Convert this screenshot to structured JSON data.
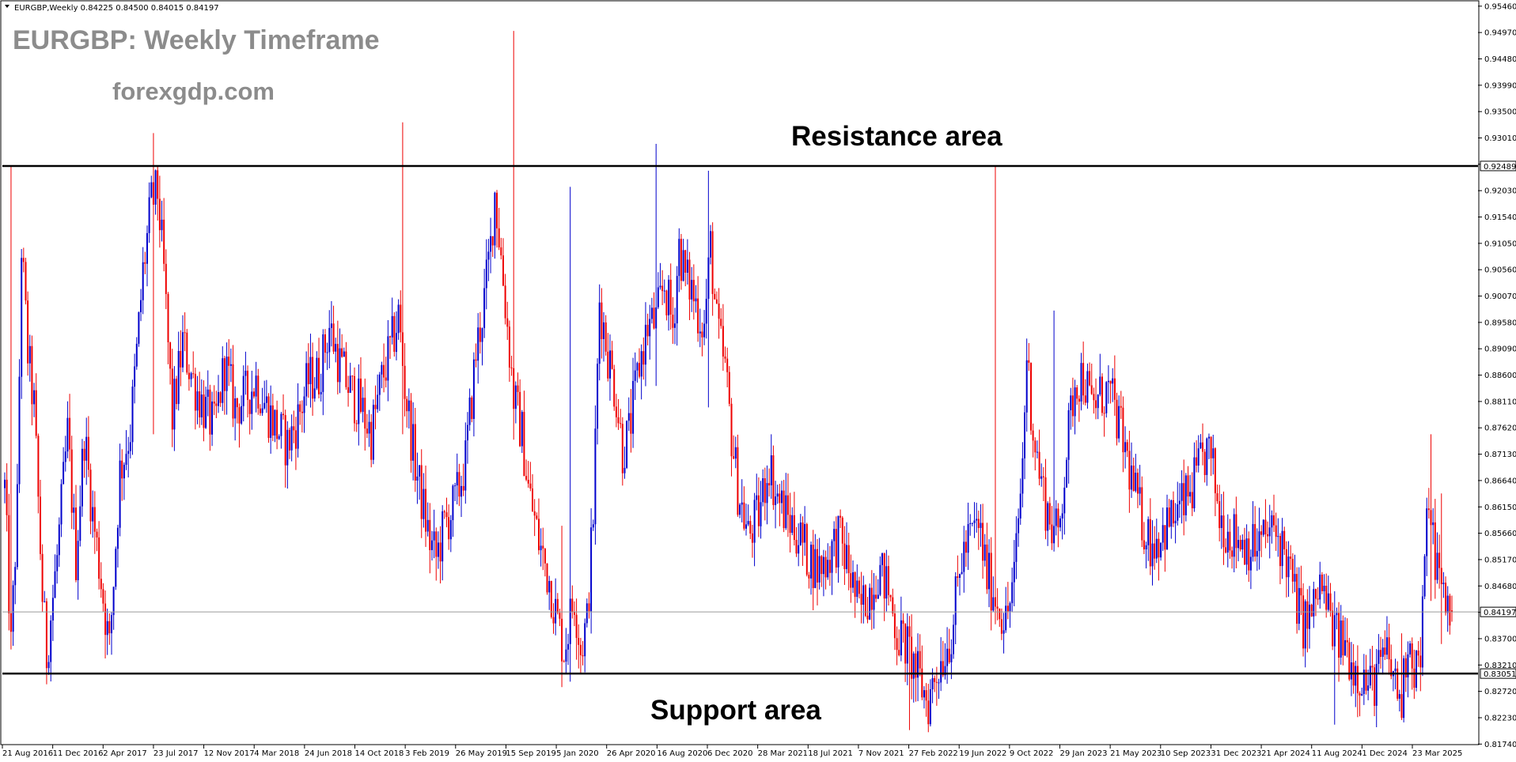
{
  "header": {
    "symbol_line": "EURGBP,Weekly  0.84225 0.84500 0.84015 0.84197"
  },
  "watermark": {
    "title": "EURGBP: Weekly Timeframe",
    "site": "forexgdp.com"
  },
  "annotations": {
    "resistance": "Resistance area",
    "support": "Support area"
  },
  "colors": {
    "bull": "#0000cc",
    "bear": "#ee0000",
    "level": "#000000",
    "current_line": "#9a9a9a",
    "grid": "#000000"
  },
  "chart_data": {
    "type": "candlestick",
    "symbol": "EURGBP",
    "timeframe": "Weekly",
    "last": {
      "open": 0.84225,
      "high": 0.845,
      "low": 0.84015,
      "close": 0.84197
    },
    "ylim": [
      0.8173,
      0.9556
    ],
    "y_ticks": [
      "0.95460",
      "0.94970",
      "0.94480",
      "0.93990",
      "0.93500",
      "0.93010",
      "0.92520",
      "0.92030",
      "0.91540",
      "0.91050",
      "0.90560",
      "0.90070",
      "0.89580",
      "0.89090",
      "0.88600",
      "0.88110",
      "0.87620",
      "0.87130",
      "0.86640",
      "0.86150",
      "0.85660",
      "0.85170",
      "0.84680",
      "0.84190",
      "0.83700",
      "0.83210",
      "0.82720",
      "0.82230",
      "0.81740"
    ],
    "x_ticks": [
      "21 Aug 2016",
      "11 Dec 2016",
      "2 Apr 2017",
      "23 Jul 2017",
      "12 Nov 2017",
      "4 Mar 2018",
      "24 Jun 2018",
      "14 Oct 2018",
      "3 Feb 2019",
      "26 May 2019",
      "15 Sep 2019",
      "5 Jan 2020",
      "26 Apr 2020",
      "16 Aug 2020",
      "6 Dec 2020",
      "28 Mar 2021",
      "18 Jul 2021",
      "7 Nov 2021",
      "27 Feb 2022",
      "19 Jun 2022",
      "9 Oct 2022",
      "29 Jan 2023",
      "21 May 2023",
      "10 Sep 2023",
      "31 Dec 2023",
      "21 Apr 2024",
      "11 Aug 2024",
      "1 Dec 2024",
      "23 Mar 2025"
    ],
    "levels": [
      {
        "name": "Resistance area",
        "value": 0.92489,
        "tag": "0.92489"
      },
      {
        "name": "Support area",
        "value": 0.83051,
        "tag": "0.83051"
      }
    ],
    "current_price": {
      "value": 0.84197,
      "tag": "0.84197"
    },
    "path_points": [
      [
        0,
        0.865
      ],
      [
        3,
        0.835
      ],
      [
        6,
        0.862
      ],
      [
        8,
        0.91
      ],
      [
        11,
        0.89
      ],
      [
        14,
        0.88
      ],
      [
        18,
        0.845
      ],
      [
        20,
        0.834
      ],
      [
        25,
        0.852
      ],
      [
        30,
        0.875
      ],
      [
        34,
        0.852
      ],
      [
        38,
        0.875
      ],
      [
        42,
        0.86
      ],
      [
        46,
        0.848
      ],
      [
        50,
        0.835
      ],
      [
        55,
        0.868
      ],
      [
        60,
        0.876
      ],
      [
        63,
        0.89
      ],
      [
        66,
        0.905
      ],
      [
        70,
        0.918
      ],
      [
        73,
        0.92
      ],
      [
        76,
        0.905
      ],
      [
        80,
        0.878
      ],
      [
        85,
        0.892
      ],
      [
        90,
        0.885
      ],
      [
        95,
        0.88
      ],
      [
        100,
        0.876
      ],
      [
        105,
        0.888
      ],
      [
        110,
        0.88
      ],
      [
        115,
        0.882
      ],
      [
        120,
        0.885
      ],
      [
        125,
        0.88
      ],
      [
        130,
        0.876
      ],
      [
        135,
        0.873
      ],
      [
        140,
        0.878
      ],
      [
        145,
        0.885
      ],
      [
        150,
        0.886
      ],
      [
        155,
        0.895
      ],
      [
        160,
        0.888
      ],
      [
        165,
        0.883
      ],
      [
        170,
        0.88
      ],
      [
        175,
        0.875
      ],
      [
        180,
        0.885
      ],
      [
        185,
        0.892
      ],
      [
        188,
        0.897
      ],
      [
        191,
        0.884
      ],
      [
        195,
        0.872
      ],
      [
        198,
        0.865
      ],
      [
        203,
        0.855
      ],
      [
        206,
        0.852
      ],
      [
        210,
        0.858
      ],
      [
        215,
        0.862
      ],
      [
        220,
        0.87
      ],
      [
        225,
        0.89
      ],
      [
        229,
        0.9
      ],
      [
        232,
        0.91
      ],
      [
        234,
        0.92
      ],
      [
        237,
        0.908
      ],
      [
        240,
        0.895
      ],
      [
        243,
        0.882
      ],
      [
        247,
        0.875
      ],
      [
        250,
        0.865
      ],
      [
        255,
        0.855
      ],
      [
        260,
        0.848
      ],
      [
        264,
        0.84
      ],
      [
        267,
        0.835
      ],
      [
        272,
        0.845
      ],
      [
        275,
        0.835
      ],
      [
        278,
        0.84
      ],
      [
        281,
        0.86
      ],
      [
        284,
        0.9
      ],
      [
        288,
        0.89
      ],
      [
        292,
        0.882
      ],
      [
        295,
        0.872
      ],
      [
        298,
        0.875
      ],
      [
        303,
        0.888
      ],
      [
        307,
        0.895
      ],
      [
        311,
        0.896
      ],
      [
        315,
        0.903
      ],
      [
        319,
        0.895
      ],
      [
        322,
        0.91
      ],
      [
        325,
        0.904
      ],
      [
        328,
        0.902
      ],
      [
        331,
        0.898
      ],
      [
        334,
        0.895
      ],
      [
        337,
        0.91
      ],
      [
        340,
        0.895
      ],
      [
        344,
        0.887
      ],
      [
        347,
        0.875
      ],
      [
        350,
        0.865
      ],
      [
        355,
        0.856
      ],
      [
        360,
        0.86
      ],
      [
        365,
        0.87
      ],
      [
        368,
        0.864
      ],
      [
        373,
        0.86
      ],
      [
        378,
        0.857
      ],
      [
        383,
        0.853
      ],
      [
        388,
        0.85
      ],
      [
        393,
        0.852
      ],
      [
        398,
        0.856
      ],
      [
        403,
        0.85
      ],
      [
        408,
        0.842
      ],
      [
        413,
        0.846
      ],
      [
        417,
        0.85
      ],
      [
        422,
        0.846
      ],
      [
        426,
        0.838
      ],
      [
        430,
        0.836
      ],
      [
        434,
        0.832
      ],
      [
        438,
        0.828
      ],
      [
        441,
        0.825
      ],
      [
        444,
        0.83
      ],
      [
        448,
        0.834
      ],
      [
        452,
        0.838
      ],
      [
        457,
        0.852
      ],
      [
        461,
        0.856
      ],
      [
        465,
        0.858
      ],
      [
        469,
        0.849
      ],
      [
        474,
        0.844
      ],
      [
        478,
        0.84
      ],
      [
        482,
        0.848
      ],
      [
        486,
        0.87
      ],
      [
        488,
        0.89
      ],
      [
        491,
        0.876
      ],
      [
        494,
        0.868
      ],
      [
        497,
        0.862
      ],
      [
        500,
        0.858
      ],
      [
        503,
        0.856
      ],
      [
        507,
        0.872
      ],
      [
        511,
        0.885
      ],
      [
        515,
        0.886
      ],
      [
        519,
        0.88
      ],
      [
        523,
        0.882
      ],
      [
        527,
        0.883
      ],
      [
        531,
        0.878
      ],
      [
        535,
        0.872
      ],
      [
        539,
        0.865
      ],
      [
        543,
        0.859
      ],
      [
        547,
        0.855
      ],
      [
        551,
        0.856
      ],
      [
        555,
        0.858
      ],
      [
        559,
        0.86
      ],
      [
        563,
        0.862
      ],
      [
        567,
        0.865
      ],
      [
        571,
        0.869
      ],
      [
        574,
        0.872
      ],
      [
        577,
        0.868
      ],
      [
        580,
        0.86
      ],
      [
        584,
        0.857
      ],
      [
        588,
        0.856
      ],
      [
        592,
        0.855
      ],
      [
        596,
        0.854
      ],
      [
        600,
        0.855
      ],
      [
        604,
        0.857
      ],
      [
        608,
        0.856
      ],
      [
        612,
        0.852
      ],
      [
        616,
        0.845
      ],
      [
        620,
        0.84
      ],
      [
        624,
        0.841
      ],
      [
        628,
        0.847
      ],
      [
        632,
        0.842
      ],
      [
        636,
        0.837
      ],
      [
        640,
        0.836
      ],
      [
        644,
        0.832
      ],
      [
        648,
        0.83
      ],
      [
        652,
        0.828
      ],
      [
        656,
        0.831
      ],
      [
        660,
        0.834
      ],
      [
        663,
        0.83
      ],
      [
        667,
        0.825
      ],
      [
        670,
        0.838
      ],
      [
        673,
        0.832
      ],
      [
        676,
        0.833
      ],
      [
        678,
        0.85
      ],
      [
        680,
        0.865
      ],
      [
        682,
        0.855
      ],
      [
        685,
        0.848
      ],
      [
        688,
        0.844
      ],
      [
        691,
        0.842
      ]
    ],
    "spikes": [
      [
        3,
        0.925,
        0.835
      ],
      [
        71,
        0.931,
        0.875
      ],
      [
        190,
        0.933,
        0.875
      ],
      [
        243,
        0.95,
        0.874
      ],
      [
        270,
        0.921,
        0.829
      ],
      [
        311,
        0.929,
        0.884
      ],
      [
        336,
        0.924,
        0.88
      ],
      [
        473,
        0.9248,
        0.883
      ],
      [
        501,
        0.898,
        0.856
      ],
      [
        266,
        0.858,
        0.828
      ],
      [
        432,
        0.83,
        0.82
      ],
      [
        635,
        0.833,
        0.821
      ],
      [
        667,
        0.838,
        0.824
      ],
      [
        681,
        0.875,
        0.844
      ],
      [
        686,
        0.864,
        0.836
      ]
    ]
  }
}
